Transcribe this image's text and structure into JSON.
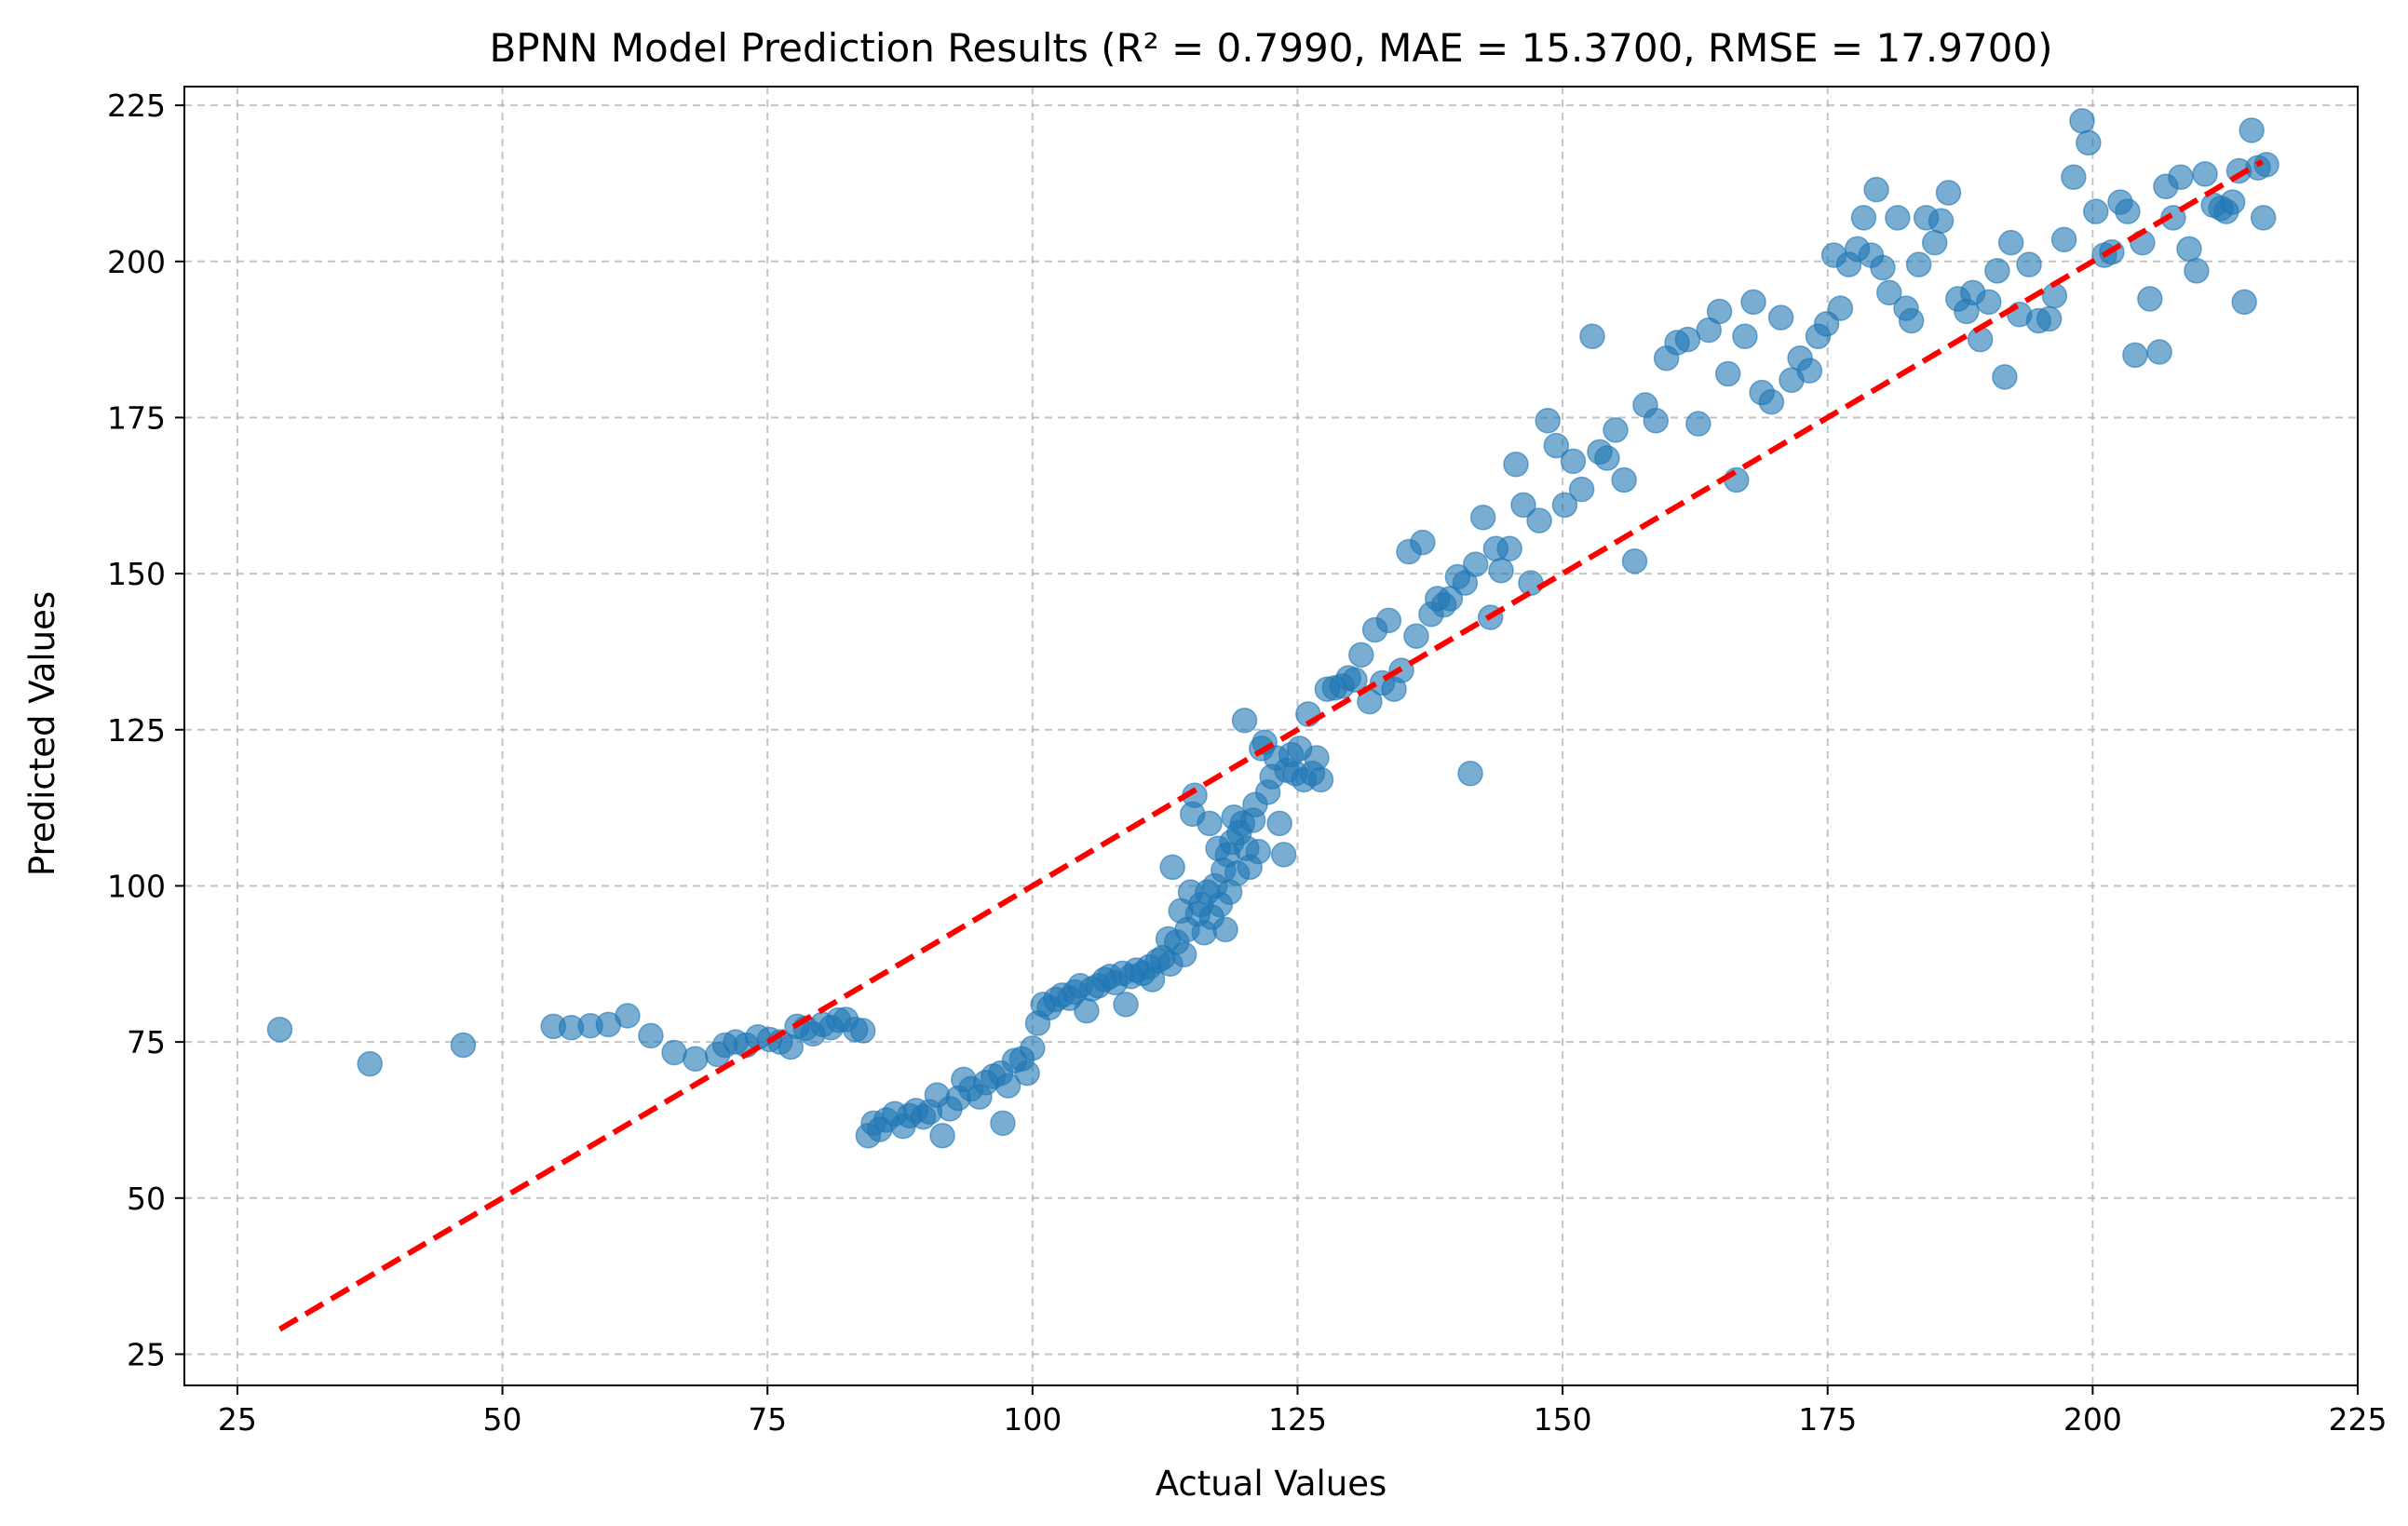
{
  "chart_data": {
    "type": "scatter",
    "title": "BPNN Model Prediction Results (R² = 0.7990, MAE = 15.3700, RMSE = 17.9700)",
    "xlabel": "Actual Values",
    "ylabel": "Predicted Values",
    "xlim": [
      20,
      225
    ],
    "ylim": [
      20,
      228
    ],
    "xticks": [
      25,
      50,
      75,
      100,
      125,
      150,
      175,
      200,
      225
    ],
    "yticks": [
      25,
      50,
      75,
      100,
      125,
      150,
      175,
      200,
      225
    ],
    "grid": true,
    "colors": {
      "points": "#1f77b4",
      "reference_line": "#ff0000",
      "grid": "#b0b0b0"
    },
    "reference_line": {
      "style": "dashed",
      "x": [
        29,
        216
      ],
      "y": [
        29,
        216
      ]
    },
    "points": [
      [
        29,
        77
      ],
      [
        37.5,
        71.5
      ],
      [
        46.3,
        74.5
      ],
      [
        54.8,
        77.5
      ],
      [
        56.5,
        77.3
      ],
      [
        58.3,
        77.6
      ],
      [
        60,
        77.8
      ],
      [
        61.8,
        79.2
      ],
      [
        64,
        76
      ],
      [
        66.2,
        73.3
      ],
      [
        68.2,
        72.3
      ],
      [
        70.3,
        73
      ],
      [
        71,
        74.5
      ],
      [
        72,
        75
      ],
      [
        73,
        74.5
      ],
      [
        74.1,
        75.8
      ],
      [
        75.2,
        75.4
      ],
      [
        76.2,
        75
      ],
      [
        77.2,
        74.2
      ],
      [
        77.8,
        77.5
      ],
      [
        78.6,
        77.2
      ],
      [
        79.3,
        76.3
      ],
      [
        80.2,
        77.8
      ],
      [
        81,
        77.3
      ],
      [
        81.7,
        78.5
      ],
      [
        82.4,
        78.6
      ],
      [
        83.3,
        77
      ],
      [
        84,
        76.8
      ],
      [
        84.5,
        60
      ],
      [
        85,
        62
      ],
      [
        85.6,
        61
      ],
      [
        86.2,
        62.5
      ],
      [
        87,
        63.5
      ],
      [
        87.8,
        61.5
      ],
      [
        88.4,
        63.2
      ],
      [
        89,
        64
      ],
      [
        89.7,
        63
      ],
      [
        90.3,
        63.8
      ],
      [
        91,
        66.5
      ],
      [
        91.5,
        60
      ],
      [
        92.2,
        64.3
      ],
      [
        93,
        66
      ],
      [
        93.5,
        69
      ],
      [
        94.2,
        67.5
      ],
      [
        95,
        66.2
      ],
      [
        95.6,
        68.5
      ],
      [
        96.3,
        69.5
      ],
      [
        97,
        70
      ],
      [
        97.2,
        62
      ],
      [
        97.7,
        68
      ],
      [
        98.3,
        72
      ],
      [
        99,
        72.3
      ],
      [
        99.5,
        70
      ],
      [
        100,
        74
      ],
      [
        100.5,
        78
      ],
      [
        101,
        81
      ],
      [
        101.6,
        80.5
      ],
      [
        102.2,
        81.8
      ],
      [
        102.8,
        82.5
      ],
      [
        103.5,
        82
      ],
      [
        104,
        83
      ],
      [
        104.5,
        84
      ],
      [
        105.1,
        80
      ],
      [
        105.6,
        83.5
      ],
      [
        106.2,
        84
      ],
      [
        106.8,
        85
      ],
      [
        107.3,
        85.5
      ],
      [
        107.8,
        84.5
      ],
      [
        108.5,
        86
      ],
      [
        108.8,
        81
      ],
      [
        109.3,
        85.5
      ],
      [
        109.8,
        86.5
      ],
      [
        110.4,
        86
      ],
      [
        111,
        87
      ],
      [
        111.3,
        85
      ],
      [
        111.8,
        88
      ],
      [
        112.3,
        88.5
      ],
      [
        112.8,
        91.5
      ],
      [
        113,
        87.5
      ],
      [
        113.2,
        103
      ],
      [
        113.6,
        91
      ],
      [
        114,
        96
      ],
      [
        114.3,
        89
      ],
      [
        114.6,
        93
      ],
      [
        114.9,
        99
      ],
      [
        115.1,
        111.5
      ],
      [
        115.3,
        114.5
      ],
      [
        115.6,
        95.5
      ],
      [
        115.9,
        97
      ],
      [
        116.2,
        92.5
      ],
      [
        116.5,
        99
      ],
      [
        116.7,
        110
      ],
      [
        116.9,
        95
      ],
      [
        117.2,
        100
      ],
      [
        117.5,
        106
      ],
      [
        117.7,
        97
      ],
      [
        118,
        102.5
      ],
      [
        118.2,
        93
      ],
      [
        118.4,
        105
      ],
      [
        118.6,
        99
      ],
      [
        118.8,
        107
      ],
      [
        119,
        111
      ],
      [
        119.3,
        102
      ],
      [
        119.5,
        108.5
      ],
      [
        119.8,
        110
      ],
      [
        120,
        126.5
      ],
      [
        120.2,
        106
      ],
      [
        120.5,
        103
      ],
      [
        120.8,
        110.5
      ],
      [
        121,
        113
      ],
      [
        121.3,
        105.5
      ],
      [
        121.6,
        122
      ],
      [
        121.9,
        123
      ],
      [
        122.2,
        115
      ],
      [
        122.6,
        117.5
      ],
      [
        123,
        120.5
      ],
      [
        123.3,
        110
      ],
      [
        123.7,
        105
      ],
      [
        124,
        118.5
      ],
      [
        124.4,
        121
      ],
      [
        124.8,
        118
      ],
      [
        125.2,
        122
      ],
      [
        125.6,
        117
      ],
      [
        126,
        127.5
      ],
      [
        126.4,
        118
      ],
      [
        126.8,
        120.5
      ],
      [
        127.2,
        117
      ],
      [
        127.8,
        131.5
      ],
      [
        128.5,
        131.7
      ],
      [
        129.2,
        132
      ],
      [
        129.8,
        133.3
      ],
      [
        130.4,
        133
      ],
      [
        131,
        137
      ],
      [
        131.8,
        129.5
      ],
      [
        132.3,
        141
      ],
      [
        133,
        132.5
      ],
      [
        133.6,
        142.5
      ],
      [
        134.1,
        131.5
      ],
      [
        134.8,
        134.5
      ],
      [
        135.5,
        153.5
      ],
      [
        136.2,
        140
      ],
      [
        136.8,
        155
      ],
      [
        137.6,
        143.5
      ],
      [
        138.2,
        146
      ],
      [
        138.8,
        145
      ],
      [
        139.4,
        146
      ],
      [
        140.1,
        149.5
      ],
      [
        140.8,
        148.5
      ],
      [
        141.3,
        118
      ],
      [
        141.8,
        151.5
      ],
      [
        142.5,
        159
      ],
      [
        143.2,
        143
      ],
      [
        143.7,
        154
      ],
      [
        144.2,
        150.5
      ],
      [
        145,
        154
      ],
      [
        145.6,
        167.5
      ],
      [
        146.3,
        161
      ],
      [
        147,
        148.5
      ],
      [
        147.8,
        158.5
      ],
      [
        148.6,
        174.5
      ],
      [
        149.4,
        170.5
      ],
      [
        150.2,
        161
      ],
      [
        151,
        168
      ],
      [
        151.8,
        163.5
      ],
      [
        152.8,
        188
      ],
      [
        153.5,
        169.5
      ],
      [
        154.2,
        168.5
      ],
      [
        155,
        173
      ],
      [
        155.8,
        165
      ],
      [
        156.8,
        152
      ],
      [
        157.8,
        177
      ],
      [
        158.8,
        174.5
      ],
      [
        159.8,
        184.5
      ],
      [
        160.8,
        187
      ],
      [
        161.8,
        187.5
      ],
      [
        162.8,
        174
      ],
      [
        163.8,
        189
      ],
      [
        164.8,
        192
      ],
      [
        165.6,
        182
      ],
      [
        166.4,
        165
      ],
      [
        167.2,
        188
      ],
      [
        168,
        193.5
      ],
      [
        168.8,
        179
      ],
      [
        169.7,
        177.5
      ],
      [
        170.6,
        191
      ],
      [
        171.6,
        181
      ],
      [
        172.4,
        184.5
      ],
      [
        173.3,
        182.5
      ],
      [
        174.1,
        188
      ],
      [
        174.9,
        190
      ],
      [
        175.6,
        201
      ],
      [
        176.2,
        192.5
      ],
      [
        177,
        199.5
      ],
      [
        177.8,
        202
      ],
      [
        178.4,
        207
      ],
      [
        179.1,
        201
      ],
      [
        179.6,
        211.5
      ],
      [
        180.2,
        199
      ],
      [
        180.8,
        195
      ],
      [
        181.6,
        207
      ],
      [
        182.4,
        192.5
      ],
      [
        182.9,
        190.5
      ],
      [
        183.6,
        199.5
      ],
      [
        184.3,
        207
      ],
      [
        185.1,
        203
      ],
      [
        185.7,
        206.5
      ],
      [
        186.4,
        211
      ],
      [
        187.3,
        194
      ],
      [
        188.1,
        192
      ],
      [
        188.7,
        195
      ],
      [
        189.4,
        187.5
      ],
      [
        190.2,
        193.5
      ],
      [
        191,
        198.5
      ],
      [
        191.7,
        181.5
      ],
      [
        192.3,
        203
      ],
      [
        193.1,
        191.5
      ],
      [
        194,
        199.5
      ],
      [
        194.9,
        190.5
      ],
      [
        195.9,
        190.8
      ],
      [
        196.4,
        194.5
      ],
      [
        197.3,
        203.5
      ],
      [
        198.2,
        213.5
      ],
      [
        199,
        222.5
      ],
      [
        199.6,
        219
      ],
      [
        200.3,
        208
      ],
      [
        201.1,
        201
      ],
      [
        201.8,
        201.5
      ],
      [
        202.6,
        209.5
      ],
      [
        203.3,
        208
      ],
      [
        204,
        185
      ],
      [
        204.7,
        203
      ],
      [
        205.4,
        194
      ],
      [
        206.3,
        185.5
      ],
      [
        206.9,
        212
      ],
      [
        207.6,
        207
      ],
      [
        208.3,
        213.5
      ],
      [
        209.1,
        202
      ],
      [
        209.8,
        198.5
      ],
      [
        210.6,
        214
      ],
      [
        211.4,
        209
      ],
      [
        212.1,
        208.5
      ],
      [
        212.6,
        208
      ],
      [
        213.2,
        209.5
      ],
      [
        213.8,
        214.5
      ],
      [
        214.3,
        193.5
      ],
      [
        215,
        221
      ],
      [
        215.6,
        215
      ],
      [
        216.1,
        207
      ],
      [
        216.4,
        215.5
      ]
    ]
  }
}
